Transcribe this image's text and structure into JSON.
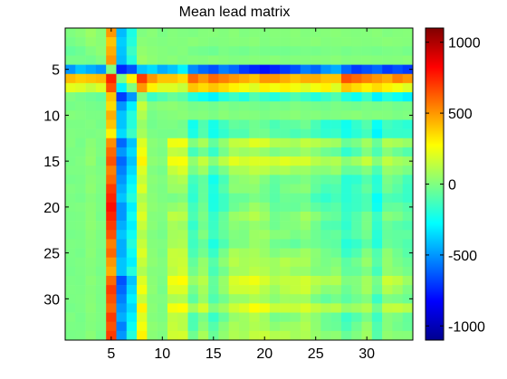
{
  "chart_data": {
    "type": "heatmap",
    "title": "Mean lead matrix",
    "xlabel": "",
    "ylabel": "",
    "rows": 34,
    "cols": 34,
    "xlim": [
      0.5,
      34.5
    ],
    "ylim": [
      0.5,
      34.5
    ],
    "x_ticks": [
      5,
      10,
      15,
      20,
      25,
      30
    ],
    "y_ticks": [
      5,
      10,
      15,
      20,
      25,
      30
    ],
    "colorbar": {
      "min": -1100,
      "max": 1100,
      "ticks": [
        1000,
        500,
        0,
        -500,
        -1000
      ],
      "colormap": "jet"
    },
    "note_on_values": "cell values estimated from color; matrix is approximately antisymmetric (z[j][i] = -z[i][j])",
    "row_strength": [
      20,
      -80,
      100,
      60,
      -250,
      500,
      300,
      -150,
      80,
      20,
      40,
      30,
      250,
      150,
      300,
      200,
      100,
      100,
      60,
      90,
      150,
      120,
      130,
      100,
      160,
      200,
      190,
      280,
      240,
      170,
      300,
      150,
      180,
      220
    ],
    "values_rows_1_10": [
      [
        0,
        20,
        60,
        20,
        500,
        -420,
        -220,
        0,
        20,
        -10,
        10,
        0,
        -5,
        10,
        15,
        5,
        20,
        0,
        10,
        5,
        15,
        10,
        20,
        5,
        10,
        15,
        20,
        10,
        5,
        10,
        20,
        0,
        10,
        15
      ],
      [
        -20,
        0,
        40,
        20,
        400,
        -380,
        -200,
        20,
        10,
        0,
        10,
        5,
        20,
        10,
        0,
        5,
        15,
        10,
        20,
        0,
        10,
        5,
        15,
        10,
        20,
        5,
        10,
        15,
        10,
        5,
        10,
        20,
        15,
        10
      ],
      [
        -60,
        -40,
        0,
        30,
        450,
        -400,
        -150,
        40,
        20,
        10,
        0,
        10,
        -20,
        -30,
        -40,
        -10,
        -20,
        -30,
        -10,
        -20,
        -25,
        -30,
        -20,
        -15,
        -20,
        -10,
        -5,
        -20,
        -10,
        -15,
        -20,
        -10,
        -5,
        -20
      ],
      [
        -20,
        -20,
        -30,
        0,
        500,
        -420,
        -200,
        60,
        30,
        10,
        20,
        0,
        10,
        5,
        20,
        10,
        0,
        5,
        15,
        10,
        20,
        0,
        10,
        5,
        15,
        10,
        20,
        5,
        10,
        15,
        10,
        5,
        10,
        20
      ],
      [
        -500,
        -400,
        -450,
        -500,
        0,
        -750,
        -650,
        -400,
        -350,
        -450,
        -400,
        -300,
        -520,
        -600,
        -650,
        -550,
        -600,
        -700,
        -750,
        -800,
        -750,
        -700,
        -650,
        -550,
        -600,
        -500,
        -450,
        -600,
        -700,
        -650,
        -600,
        -700,
        -650,
        -700
      ],
      [
        420,
        380,
        400,
        420,
        750,
        0,
        300,
        700,
        500,
        400,
        400,
        350,
        600,
        500,
        600,
        550,
        500,
        450,
        400,
        500,
        500,
        450,
        400,
        450,
        450,
        400,
        400,
        650,
        600,
        550,
        500,
        450,
        550,
        500
      ],
      [
        220,
        200,
        150,
        200,
        650,
        -300,
        0,
        500,
        300,
        200,
        200,
        150,
        400,
        350,
        400,
        350,
        300,
        250,
        200,
        300,
        250,
        300,
        250,
        200,
        250,
        300,
        200,
        400,
        350,
        300,
        350,
        300,
        250,
        200
      ],
      [
        0,
        -20,
        -40,
        -60,
        400,
        -700,
        -500,
        0,
        -150,
        -100,
        -50,
        -80,
        -200,
        -250,
        -300,
        -200,
        -150,
        -200,
        -100,
        -150,
        -200,
        -150,
        -100,
        -150,
        -200,
        -150,
        -100,
        -200,
        -250,
        -150,
        -300,
        -200,
        -250,
        -300
      ],
      [
        -20,
        -10,
        -20,
        -30,
        350,
        -500,
        -300,
        150,
        0,
        20,
        30,
        10,
        -20,
        -10,
        -30,
        0,
        -20,
        -10,
        -20,
        -30,
        -10,
        -20,
        0,
        -10,
        -20,
        -30,
        -10,
        -20,
        -30,
        -10,
        -20,
        -10,
        -30,
        -20
      ],
      [
        10,
        0,
        -10,
        -10,
        450,
        -400,
        -200,
        100,
        -20,
        0,
        10,
        20,
        0,
        10,
        -10,
        20,
        0,
        10,
        5,
        -10,
        0,
        10,
        20,
        0,
        10,
        -5,
        0,
        10,
        20,
        0,
        10,
        5,
        -10,
        0
      ]
    ]
  }
}
